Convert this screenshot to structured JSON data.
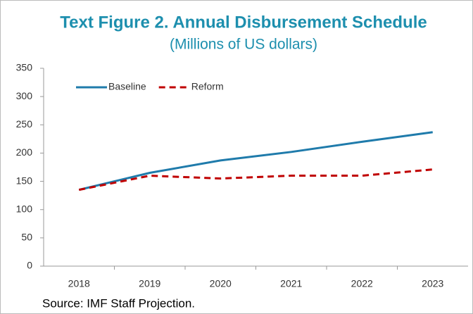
{
  "chart_data": {
    "type": "line",
    "title": "Text Figure 2. Annual Disbursement Schedule",
    "subtitle": "(Millions of US dollars)",
    "source": "Source: IMF Staff Projection.",
    "categories": [
      "2018",
      "2019",
      "2020",
      "2021",
      "2022",
      "2023"
    ],
    "series": [
      {
        "name": "Baseline",
        "color": "#1f7bab",
        "dash": false,
        "values": [
          135,
          165,
          187,
          202,
          220,
          237
        ]
      },
      {
        "name": "Reform",
        "color": "#c00000",
        "dash": true,
        "values": [
          135,
          160,
          155,
          160,
          160,
          171
        ]
      }
    ],
    "ylim": [
      0,
      350
    ],
    "yticks": [
      0,
      50,
      100,
      150,
      200,
      250,
      300,
      350
    ],
    "legend": "top-left"
  }
}
